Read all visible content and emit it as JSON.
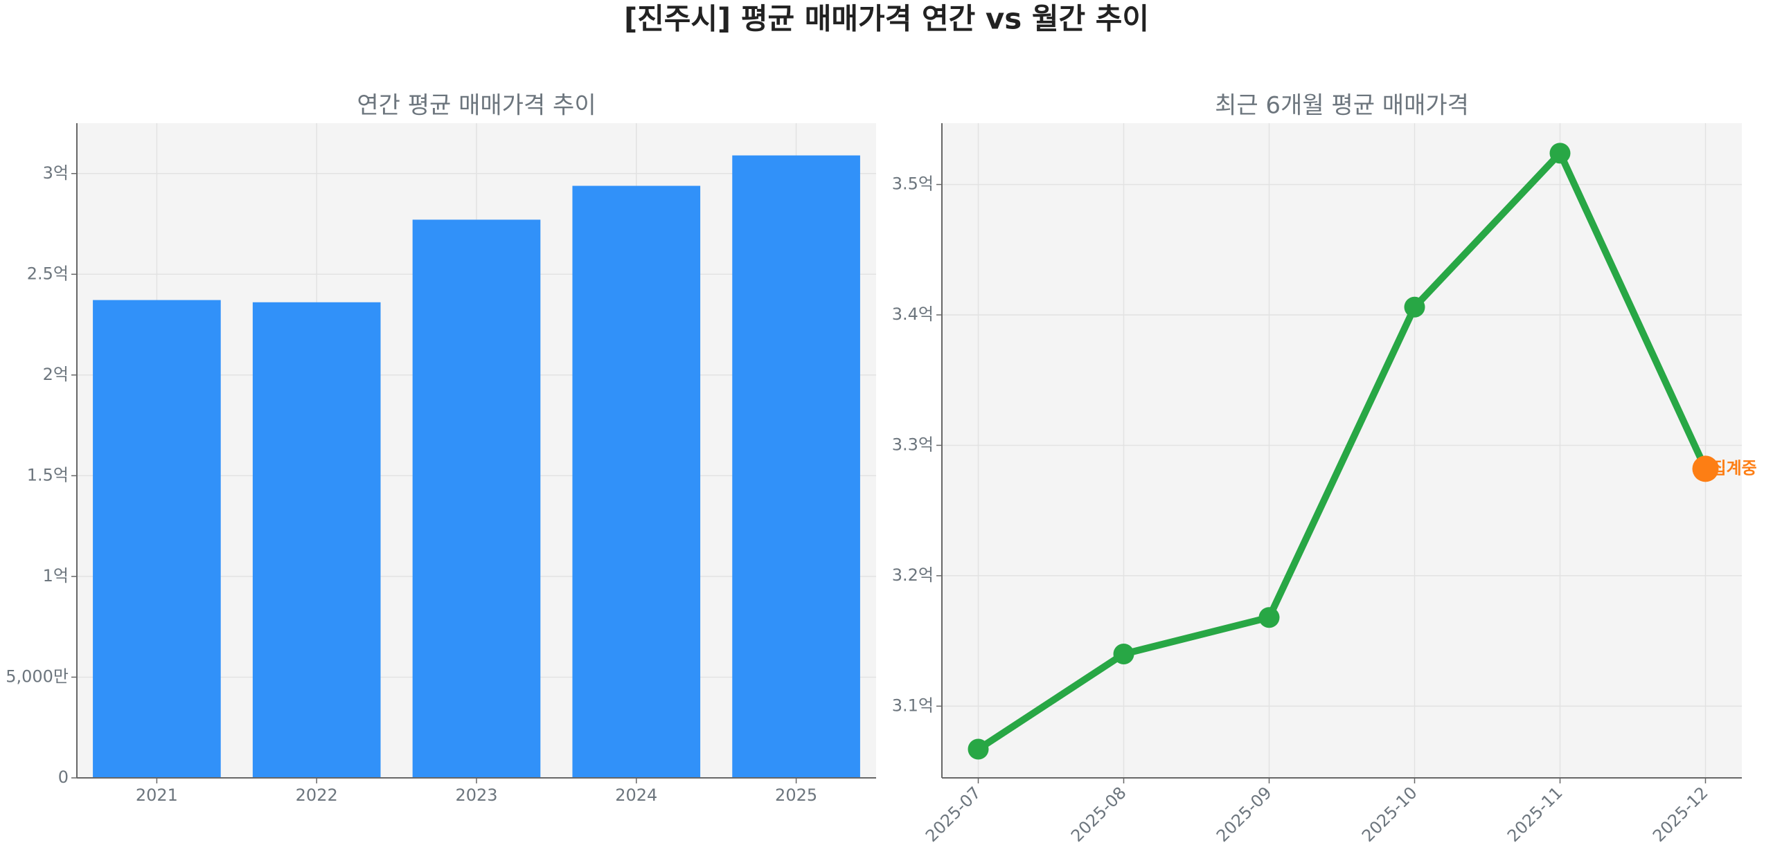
{
  "title": "[진주시] 평균 매매가격 연간 vs 월간 추이",
  "chart_data": [
    {
      "type": "bar",
      "title": "연간 평균 매매가격 추이",
      "categories": [
        "2021",
        "2022",
        "2023",
        "2024",
        "2025"
      ],
      "values": [
        2.372,
        2.361,
        2.771,
        2.939,
        3.09
      ],
      "color": "#3191f9",
      "ylim": [
        0,
        3.25
      ],
      "yticks": [
        0,
        {
          "value": 0.5,
          "label": "5,000만"
        },
        {
          "value": 1,
          "label": "1억"
        },
        {
          "value": 1.5,
          "label": "1.5억"
        },
        {
          "value": 2,
          "label": "2억"
        },
        {
          "value": 2.5,
          "label": "2.5억"
        },
        {
          "value": 3,
          "label": "3억"
        }
      ],
      "grid": true
    },
    {
      "type": "line",
      "title": "최근 6개월 평균 매매가격",
      "categories": [
        "2025-07",
        "2025-08",
        "2025-09",
        "2025-10",
        "2025-11",
        "2025-12"
      ],
      "values": [
        3.067,
        3.14,
        3.168,
        3.406,
        3.524,
        3.282
      ],
      "color": "#28a745",
      "highlight_color": "#fd7e14",
      "annotation": "집계중",
      "ylim": [
        3.045,
        3.547
      ],
      "yticks": [
        {
          "value": 3.1,
          "label": "3.1억"
        },
        {
          "value": 3.2,
          "label": "3.2억"
        },
        {
          "value": 3.3,
          "label": "3.3억"
        },
        {
          "value": 3.4,
          "label": "3.4억"
        },
        {
          "value": 3.5,
          "label": "3.5억"
        }
      ],
      "grid": true
    }
  ]
}
